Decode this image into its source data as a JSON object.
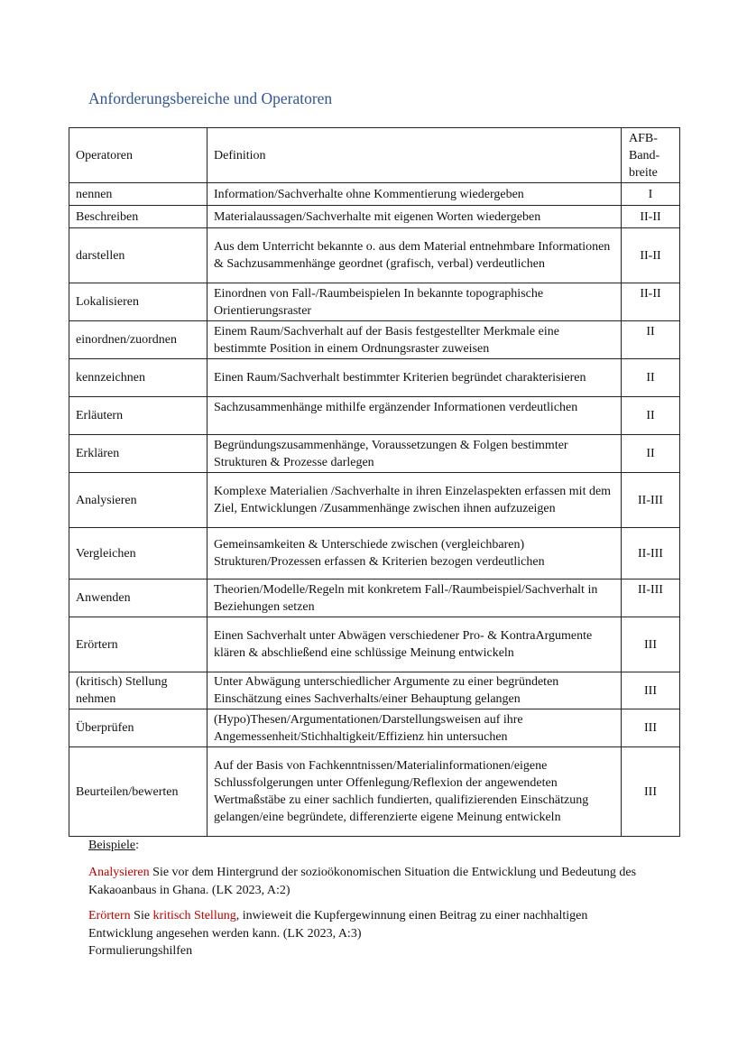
{
  "title": "Anforderungsbereiche und Operatoren",
  "table": {
    "headers": {
      "operator": "Operatoren",
      "definition": "Definition",
      "afb": "AFB-Band-breite"
    },
    "rows": [
      {
        "operator": "nennen",
        "definition": "Information/Sachverhalte ohne Kommentierung wiedergeben",
        "afb": "I"
      },
      {
        "operator": "Beschreiben",
        "definition": "Materialaussagen/Sachverhalte mit eigenen Worten wiedergeben",
        "afb": "II-II"
      },
      {
        "operator": "darstellen",
        "definition": "Aus dem Unterricht bekannte o. aus dem Material entnehmbare Informationen & Sachzusammenhänge geordnet (grafisch, verbal) verdeutlichen",
        "afb": "II-II"
      },
      {
        "operator": "Lokalisieren",
        "definition": "Einordnen von Fall-/Raumbeispielen In bekannte topographische Orientierungsraster",
        "afb": "II-II"
      },
      {
        "operator": "einordnen/zuordnen",
        "definition": "Einem Raum/Sachverhalt auf der Basis festgestellter Merkmale eine bestimmte Position in einem Ordnungsraster zuweisen",
        "afb": "II"
      },
      {
        "operator": "kennzeichnen",
        "definition": "Einen Raum/Sachverhalt bestimmter Kriterien begründet charakterisieren",
        "afb": "II"
      },
      {
        "operator": "Erläutern",
        "definition": "Sachzusammenhänge mithilfe ergänzender Informationen verdeutlichen",
        "afb": "II"
      },
      {
        "operator": "Erklären",
        "definition": "Begründungszusammenhänge, Voraussetzungen & Folgen bestimmter Strukturen & Prozesse darlegen",
        "afb": "II"
      },
      {
        "operator": "Analysieren",
        "definition": "Komplexe Materialien /Sachverhalte in ihren Einzelaspekten erfassen mit dem Ziel, Entwicklungen /Zusammenhänge zwischen ihnen aufzuzeigen",
        "afb": "II-III"
      },
      {
        "operator": "Vergleichen",
        "definition": "Gemeinsamkeiten & Unterschiede zwischen (vergleichbaren) Strukturen/Prozessen erfassen & Kriterien bezogen verdeutlichen",
        "afb": "II-III"
      },
      {
        "operator": "Anwenden",
        "definition": "Theorien/Modelle/Regeln mit konkretem Fall-/Raumbeispiel/Sachverhalt in Beziehungen setzen",
        "afb": "II-III"
      },
      {
        "operator": "Erörtern",
        "definition": "Einen Sachverhalt unter Abwägen verschiedener Pro- & KontraArgumente klären & abschließend eine schlüssige Meinung entwickeln",
        "afb": "III"
      },
      {
        "operator": "(kritisch) Stellung nehmen",
        "definition": "Unter Abwägung unterschiedlicher Argumente zu einer begründeten Einschätzung eines Sachverhalts/einer Behauptung gelangen",
        "afb": "III"
      },
      {
        "operator": "Überprüfen",
        "definition": "(Hypo)Thesen/Argumentationen/Darstellungsweisen auf ihre Angemessenheit/Stichhaltigkeit/Effizienz hin untersuchen",
        "afb": "III"
      },
      {
        "operator": "Beurteilen/bewerten",
        "definition": "Auf der Basis von Fachkenntnissen/Materialinformationen/eigene Schlussfolgerungen unter Offenlegung/Reflexion der angewendeten Wertmaßstäbe zu einer sachlich fundierten, qualifizierenden Einschätzung gelangen/eine begründete, differenzierte eigene Meinung entwickeln",
        "afb": "III"
      }
    ]
  },
  "examples": {
    "heading": "Beispiele",
    "heading_suffix": ":",
    "ex1": {
      "operator": "Analysieren",
      "text": " Sie vor dem Hintergrund der sozioökonomischen Situation die Entwicklung und Bedeutung des Kakaoanbaus in Ghana. (LK 2023, A:2)"
    },
    "ex2": {
      "operator": "Erörtern",
      "mid": " Sie ",
      "operator2": "kritisch Stellung",
      "text": ", inwieweit die Kupfergewinnung einen Beitrag zu einer nachhaltigen Entwicklung angesehen werden kann. (LK 2023, A:3)"
    },
    "footer": "Formulierungshilfen"
  },
  "colors": {
    "title": "#2f5597",
    "operator_highlight": "#c00000"
  }
}
